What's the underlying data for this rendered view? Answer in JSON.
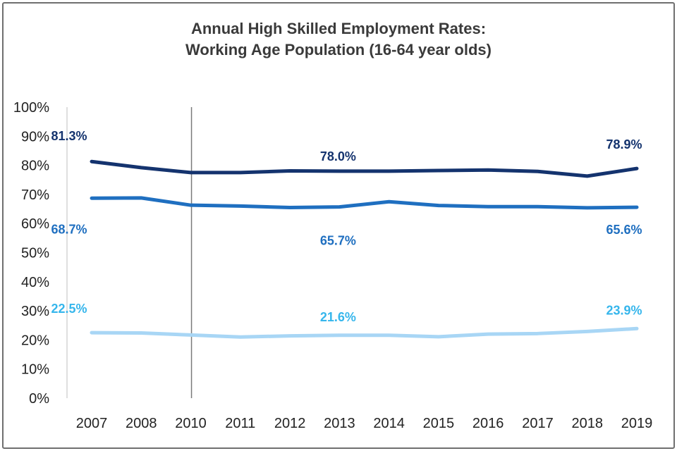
{
  "chart_data": {
    "type": "line",
    "title": "Annual High Skilled Employment Rates:",
    "subtitle": "Working Age Population (16-64 year olds)",
    "xlabel": "",
    "ylabel": "",
    "categories": [
      "2007",
      "2008",
      "2010",
      "2011",
      "2012",
      "2013",
      "2014",
      "2015",
      "2016",
      "2017",
      "2018",
      "2019"
    ],
    "y_ticks": [
      "0%",
      "10%",
      "20%",
      "30%",
      "40%",
      "50%",
      "60%",
      "70%",
      "80%",
      "90%",
      "100%"
    ],
    "ylim": [
      0,
      100
    ],
    "grid": false,
    "legend": "none",
    "reference_line": {
      "x": "2010"
    },
    "series": [
      {
        "color": "#14336e",
        "values": [
          81.3,
          79.2,
          77.5,
          77.5,
          78.1,
          78.0,
          78.0,
          78.2,
          78.4,
          77.9,
          76.3,
          78.9
        ],
        "labels": [
          {
            "index": 0,
            "text": "81.3%"
          },
          {
            "index": 5,
            "text": "78.0%"
          },
          {
            "index": 11,
            "text": "78.9%"
          }
        ]
      },
      {
        "color": "#1f6fc0",
        "values": [
          68.7,
          68.8,
          66.3,
          66.0,
          65.5,
          65.7,
          67.5,
          66.2,
          65.8,
          65.8,
          65.4,
          65.6
        ],
        "labels": [
          {
            "index": 0,
            "text": "68.7%"
          },
          {
            "index": 5,
            "text": "65.7%"
          },
          {
            "index": 11,
            "text": "65.6%"
          }
        ]
      },
      {
        "color": "#a8d6f5",
        "label_color": "#36b6ec",
        "values": [
          22.5,
          22.4,
          21.7,
          21.0,
          21.4,
          21.6,
          21.6,
          21.1,
          22.0,
          22.2,
          22.9,
          23.9
        ],
        "labels": [
          {
            "index": 0,
            "text": "22.5%"
          },
          {
            "index": 5,
            "text": "21.6%"
          },
          {
            "index": 11,
            "text": "23.9%"
          }
        ]
      }
    ]
  }
}
